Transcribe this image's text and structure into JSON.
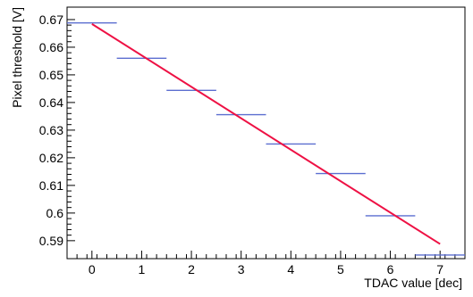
{
  "chart_data": {
    "type": "scatter",
    "title": "",
    "xlabel": "TDAC value [dec]",
    "ylabel": "Pixel threshold [V]",
    "xlim": [
      -0.5,
      7.5
    ],
    "ylim": [
      0.5835,
      0.6745
    ],
    "x_ticks": [
      0,
      1,
      2,
      3,
      4,
      5,
      6,
      7
    ],
    "y_ticks": [
      0.59,
      0.6,
      0.61,
      0.62,
      0.63,
      0.64,
      0.65,
      0.66,
      0.67
    ],
    "y_tick_labels": [
      "0.59",
      "0.6",
      "0.61",
      "0.62",
      "0.63",
      "0.64",
      "0.65",
      "0.66",
      "0.67"
    ],
    "grid": false,
    "series": [
      {
        "kind": "points_with_x_error",
        "color": "#5b6ed0",
        "x": [
          0,
          1,
          2,
          3,
          4,
          5,
          6,
          7
        ],
        "y": [
          0.6688,
          0.656,
          0.6444,
          0.6356,
          0.625,
          0.6143,
          0.599,
          0.5848
        ],
        "x_err": 0.5
      },
      {
        "kind": "fit_line",
        "color": "#ee1144",
        "x": [
          0,
          7
        ],
        "y": [
          0.6684,
          0.5888
        ]
      }
    ]
  }
}
